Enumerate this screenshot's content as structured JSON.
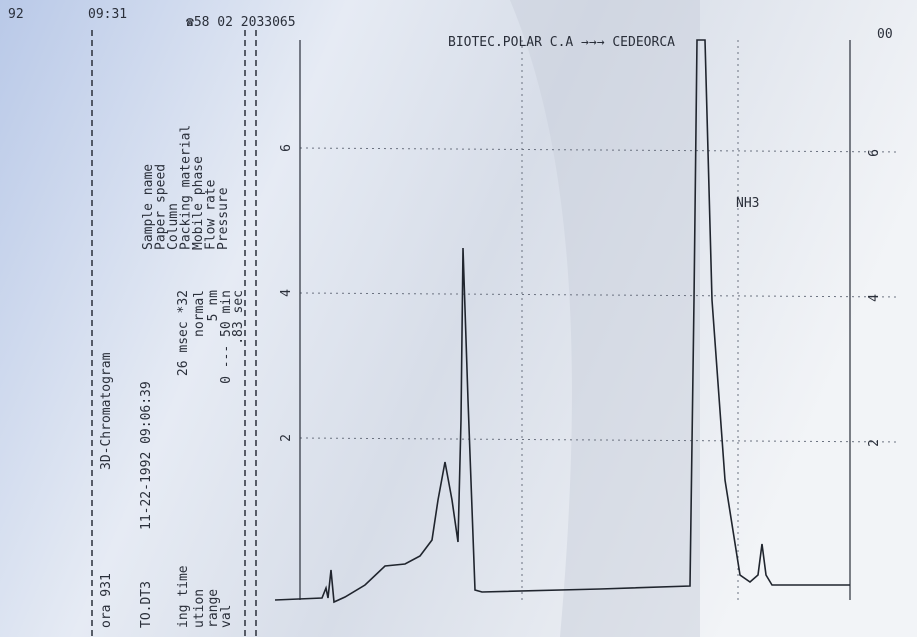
{
  "header": {
    "year_fragment": "92",
    "time": "09:31",
    "phone": "☎58 02 2033065",
    "route": "BIOTEC.POLAR C.A →→→ CEDEORCA",
    "page_marker": "00"
  },
  "run_info": {
    "rows": [
      [
        "ora 931",
        "3D-Chromatogram"
      ],
      [
        "TO.DT3",
        "11-22-1992   09:06:39"
      ],
      [
        "ing time",
        "26 msec *32"
      ],
      [
        "ution",
        "normal"
      ],
      [
        "range",
        "5 nm"
      ],
      [
        "val",
        "0 --- 50 min"
      ],
      [
        ".83 sec"
      ]
    ]
  },
  "parameters": [
    "Sample name",
    "Paper speed",
    "Column",
    "Packing material",
    "Mobile phase",
    "Flow rate",
    "Pressure"
  ],
  "axis": {
    "left_ticks": [
      6,
      4,
      2
    ],
    "right_ticks": [
      6,
      4,
      2
    ]
  },
  "annotation": "NH3"
}
